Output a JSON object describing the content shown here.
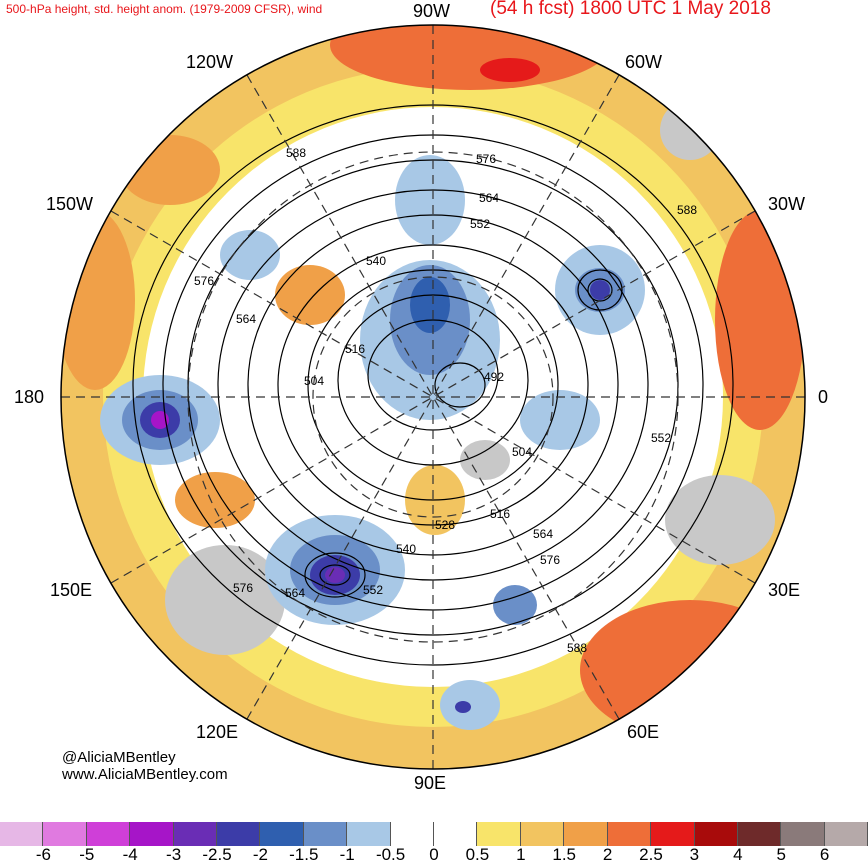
{
  "header": {
    "product": "500-hPa height, std. height anom. (1979-2009 CFSR), wind",
    "forecast": "(54 h fcst) 1800 UTC 1 May 2018"
  },
  "longitude_labels": {
    "n90w": "90W",
    "n60w": "60W",
    "n120w": "120W",
    "n30w": "30W",
    "n150w": "150W",
    "n0": "0",
    "n180": "180",
    "n30e": "30E",
    "n150e": "150E",
    "n60e": "60E",
    "n120e": "120E",
    "n90e": "90E"
  },
  "contour_labels": [
    "588",
    "576",
    "564",
    "552",
    "540",
    "576",
    "564",
    "516",
    "504",
    "492",
    "504",
    "516",
    "528",
    "540",
    "552",
    "564",
    "576",
    "588",
    "552",
    "564",
    "576",
    "588"
  ],
  "credits": {
    "twitter": "@AliciaMBentley",
    "website": "www.AliciaMBentley.com"
  },
  "colorbar": {
    "labels": [
      "-6",
      "-5",
      "-4",
      "-3",
      "-2.5",
      "-2",
      "-1.5",
      "-1",
      "-0.5",
      "0",
      "0.5",
      "1",
      "1.5",
      "2",
      "2.5",
      "3",
      "4",
      "5",
      "6"
    ],
    "colors": [
      "#e6b7e6",
      "#e07ae0",
      "#cf3fd8",
      "#a615c8",
      "#6a2db5",
      "#3c3ca8",
      "#2f5faf",
      "#6a8fc8",
      "#a8c8e6",
      "#ffffff",
      "#ffffff",
      "#f8e46a",
      "#f2c460",
      "#f0a048",
      "#ee6e38",
      "#e51a1a",
      "#a80b0b",
      "#6e2a2a",
      "#8a7a7a",
      "#b5a9a9"
    ]
  }
}
